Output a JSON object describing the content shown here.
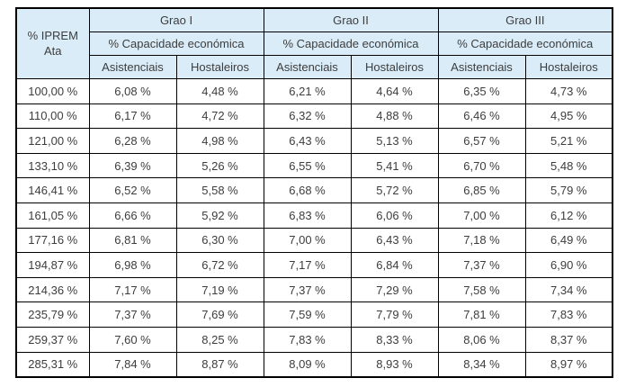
{
  "table": {
    "corner_header": "% IPREM Ata",
    "groups": [
      "Grao I",
      "Grao II",
      "Grao III"
    ],
    "subheader": "% Capacidade económica",
    "col_headers": [
      "Asistenciais",
      "Hostaleiros"
    ],
    "rows": [
      [
        "100,00 %",
        "6,08 %",
        "4,48 %",
        "6,21 %",
        "4,64 %",
        "6,35 %",
        "4,73 %"
      ],
      [
        "110,00 %",
        "6,17 %",
        "4,72 %",
        "6,32 %",
        "4,88 %",
        "6,46 %",
        "4,95 %"
      ],
      [
        "121,00 %",
        "6,28 %",
        "4,98 %",
        "6,43 %",
        "5,13 %",
        "6,57 %",
        "5,21 %"
      ],
      [
        "133,10 %",
        "6,39 %",
        "5,26 %",
        "6,55 %",
        "5,41 %",
        "6,70 %",
        "5,48 %"
      ],
      [
        "146,41 %",
        "6,52 %",
        "5,58 %",
        "6,68 %",
        "5,72 %",
        "6,85 %",
        "5,79 %"
      ],
      [
        "161,05 %",
        "6,66 %",
        "5,92 %",
        "6,83 %",
        "6,06 %",
        "7,00 %",
        "6,12 %"
      ],
      [
        "177,16 %",
        "6,81 %",
        "6,30 %",
        "7,00 %",
        "6,43 %",
        "7,18 %",
        "6,49 %"
      ],
      [
        "194,87 %",
        "6,98 %",
        "6,72 %",
        "7,17 %",
        "6,84 %",
        "7,37 %",
        "6,90 %"
      ],
      [
        "214,36 %",
        "7,17 %",
        "7,19 %",
        "7,37 %",
        "7,29 %",
        "7,58 %",
        "7,34 %"
      ],
      [
        "235,79 %",
        "7,37 %",
        "7,69 %",
        "7,59 %",
        "7,79 %",
        "7,81 %",
        "7,83 %"
      ],
      [
        "259,37 %",
        "7,60 %",
        "8,25 %",
        "7,83 %",
        "8,33 %",
        "8,06 %",
        "8,37 %"
      ],
      [
        "285,31 %",
        "7,84 %",
        "8,87 %",
        "8,09 %",
        "8,93 %",
        "8,34 %",
        "8,97 %"
      ]
    ],
    "colors": {
      "header_bg": "#d9ecf8",
      "border": "#000000",
      "text": "#3d3d3d",
      "cell_bg": "#ffffff"
    }
  }
}
